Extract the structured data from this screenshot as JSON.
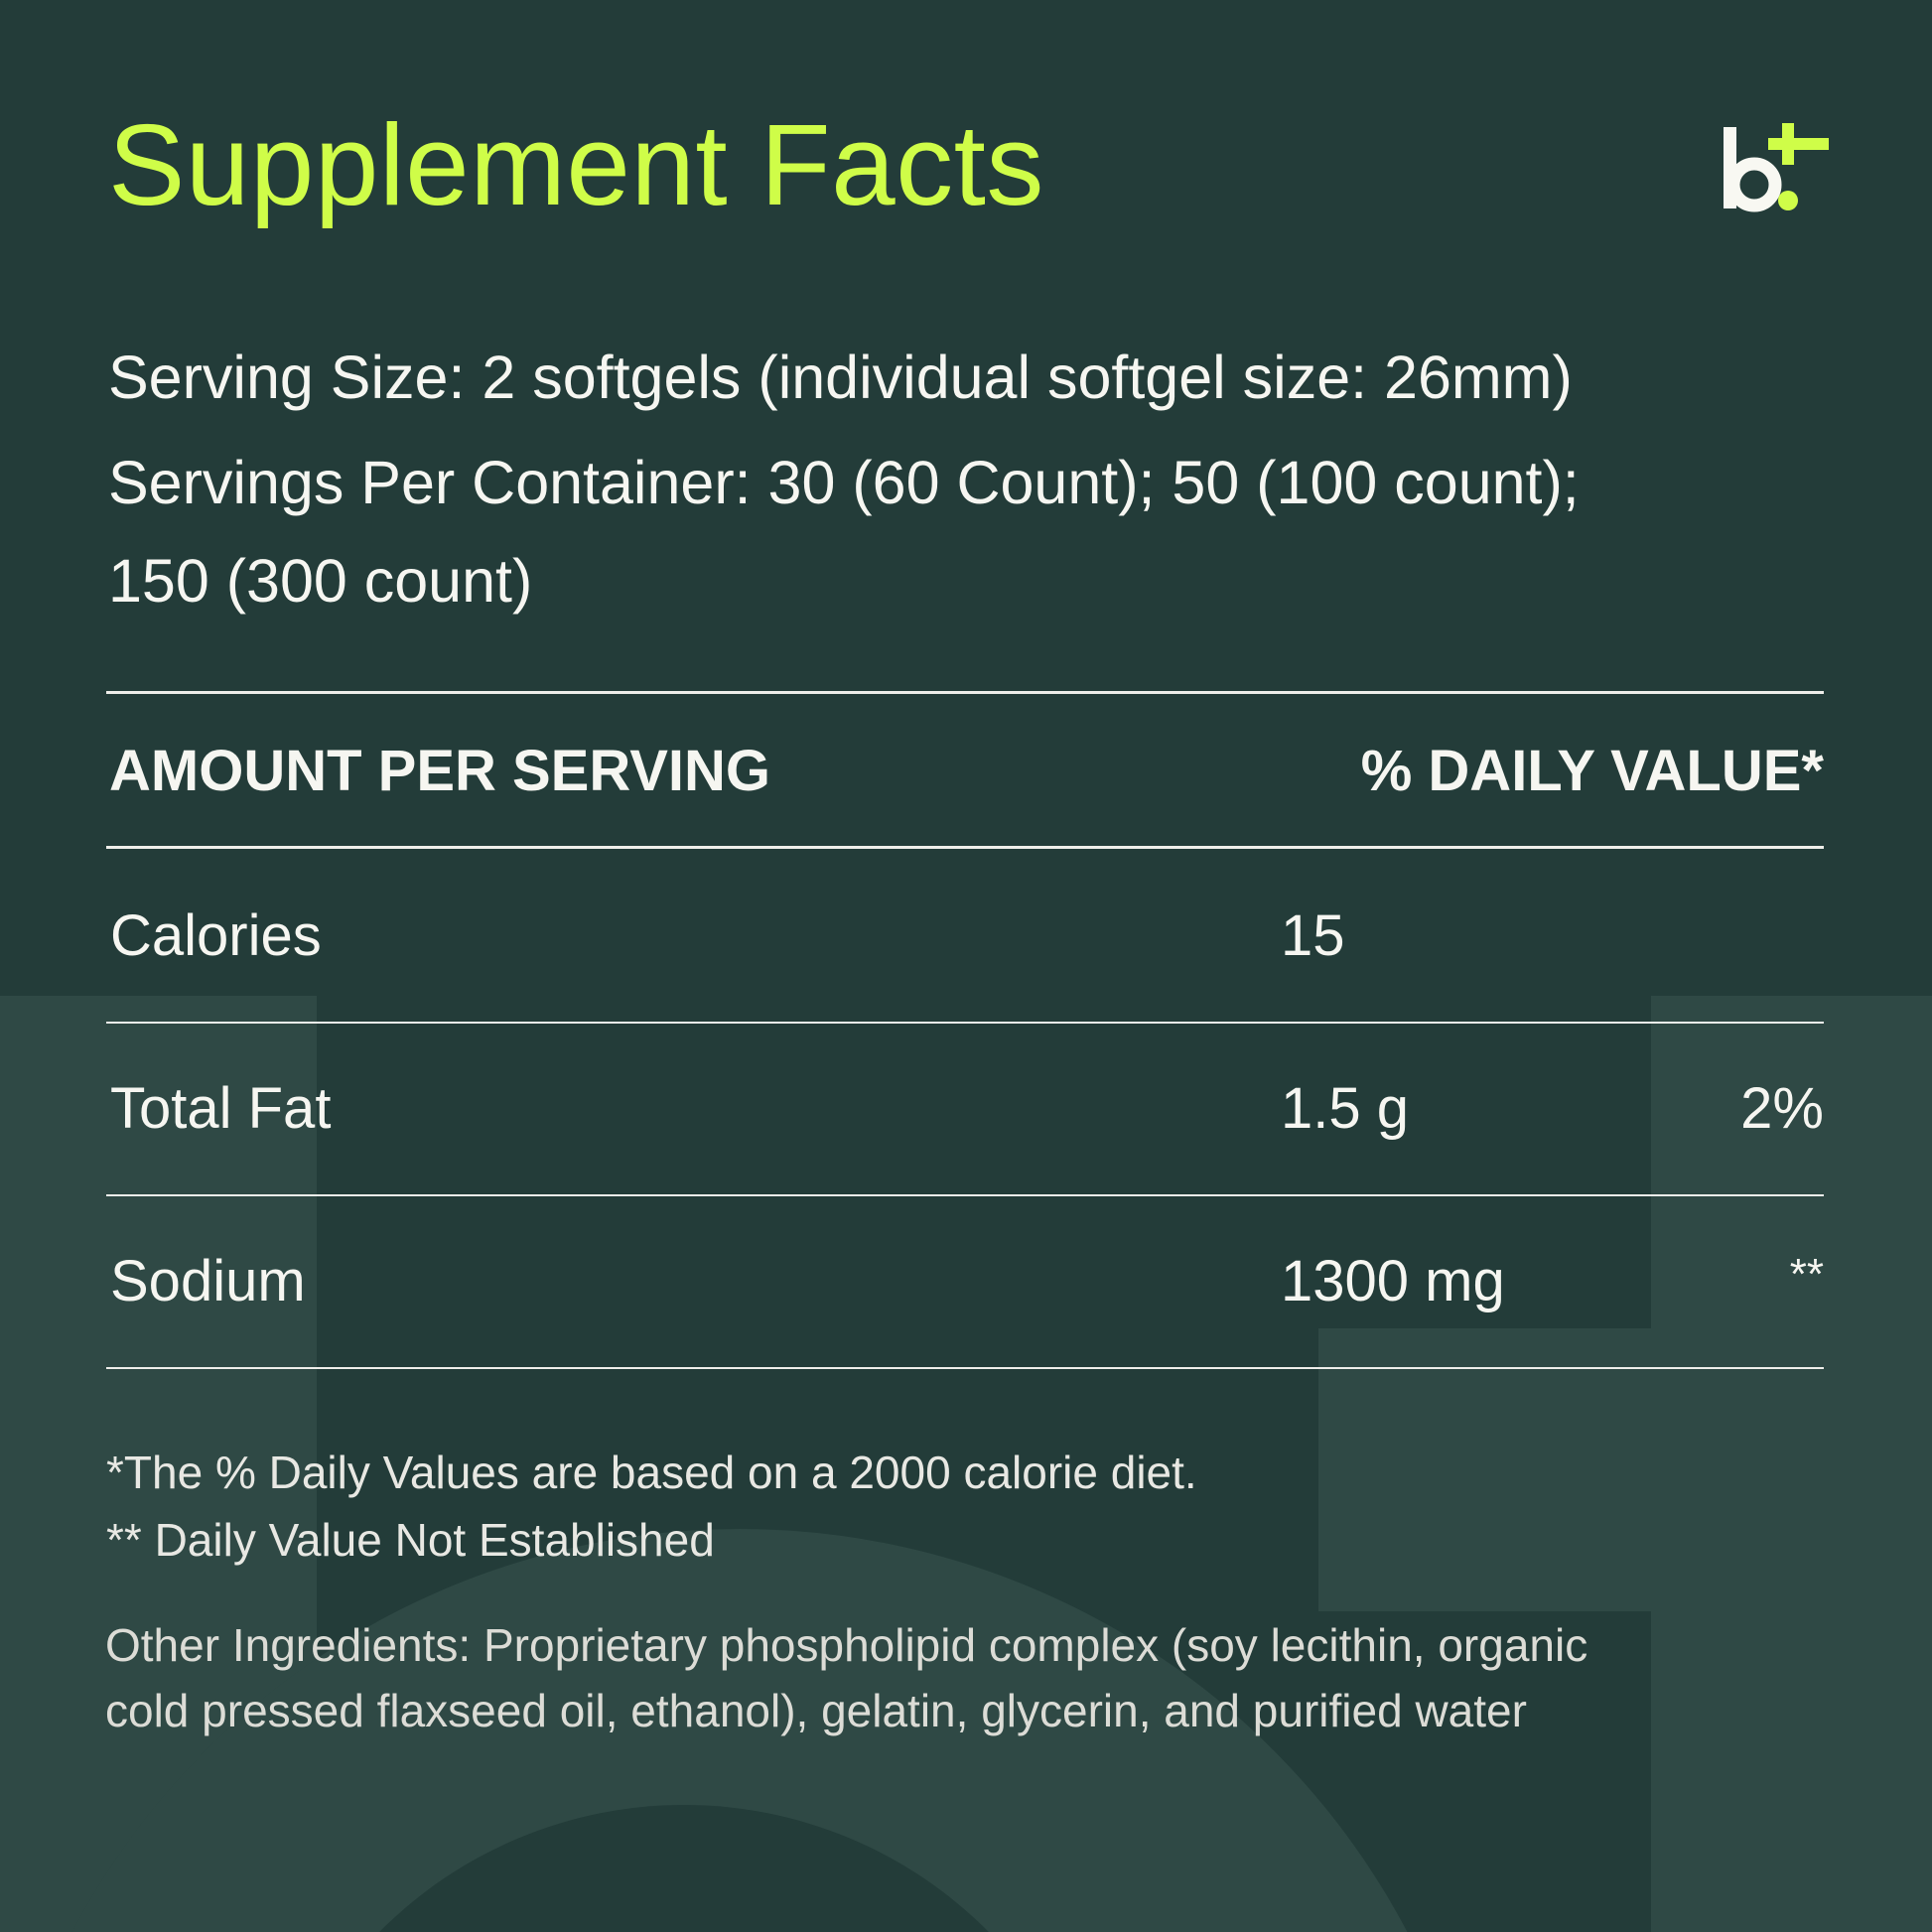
{
  "title": "Supplement Facts",
  "brand_logo": {
    "text": "b+",
    "icon": "b-plus-logo",
    "accent_color": "#cffd48"
  },
  "serving": {
    "size": "Serving Size: 2 softgels (individual softgel size: 26mm)",
    "per_container_line1": "Servings Per Container: 30 (60 Count); 50 (100 count);",
    "per_container_line2": "150 (300 count)"
  },
  "table": {
    "header_left": "AMOUNT PER SERVING",
    "header_right": "% DAILY VALUE*",
    "rows": [
      {
        "name": "Calories",
        "amount": "15",
        "dv": ""
      },
      {
        "name": "Total Fat",
        "amount": "1.5 g",
        "dv": "2%"
      },
      {
        "name": "Sodium",
        "amount": "1300 mg",
        "dv": "**"
      }
    ]
  },
  "footnotes": [
    "*The % Daily Values are based on a 2000 calorie diet.",
    "** Daily Value Not Established"
  ],
  "other_ingredients": {
    "line1": "Other Ingredients: Proprietary phospholipid complex (soy lecithin, organic",
    "line2": "cold pressed flaxseed oil, ethanol), gelatin, glycerin, and purified water"
  },
  "colors": {
    "background": "#233c39",
    "watermark": "#2f4945",
    "title": "#cffd48",
    "text": "#f6f6f1"
  }
}
